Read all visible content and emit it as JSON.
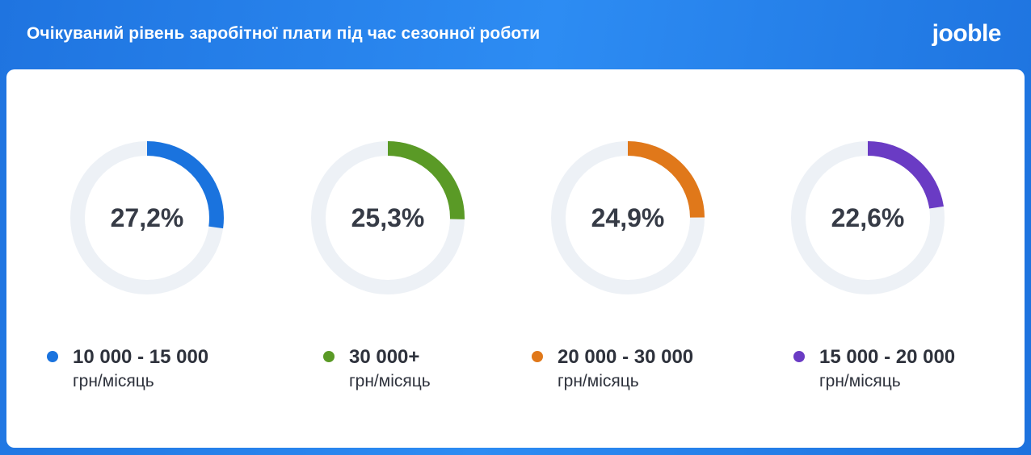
{
  "header": {
    "title": "Очікуваний рівень заробітної плати під час сезонної роботи",
    "logo": "jooble"
  },
  "colors": {
    "track": "#edf1f6",
    "value_text": "#363b46"
  },
  "chart_data": {
    "type": "pie",
    "title": "Очікуваний рівень заробітної плати під час сезонної роботи",
    "unit": "грн/місяць",
    "slices": [
      {
        "label": "10 000 - 15 000",
        "value": 27.2,
        "display": "27,2%",
        "color": "#1a73de"
      },
      {
        "label": "30 000+",
        "value": 25.3,
        "display": "25,3%",
        "color": "#5a9a26"
      },
      {
        "label": "20 000 - 30 000",
        "value": 24.9,
        "display": "24,9%",
        "color": "#e0781a"
      },
      {
        "label": "15 000 - 20 000",
        "value": 22.6,
        "display": "22,6%",
        "color": "#6a3bc4"
      }
    ]
  }
}
